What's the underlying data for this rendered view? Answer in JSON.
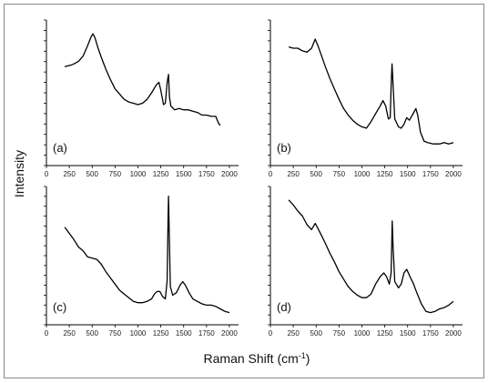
{
  "figure": {
    "xlabel": "Raman Shift (cm",
    "xlabel_sup": "-1",
    "xlabel_close": ")",
    "ylabel": "Intensity"
  },
  "chart_data": [
    {
      "type": "line",
      "panel": "(a)",
      "xlim": [
        0,
        2100
      ],
      "ylim": [
        0,
        100
      ],
      "xticks": [
        0,
        250,
        500,
        750,
        1000,
        1250,
        1500,
        1750,
        2000
      ],
      "series": [
        {
          "points": [
            [
              200,
              70
            ],
            [
              260,
              71
            ],
            [
              300,
              72
            ],
            [
              350,
              74
            ],
            [
              400,
              78
            ],
            [
              450,
              86
            ],
            [
              490,
              93
            ],
            [
              510,
              95
            ],
            [
              530,
              92
            ],
            [
              560,
              85
            ],
            [
              600,
              77
            ],
            [
              650,
              68
            ],
            [
              700,
              60
            ],
            [
              750,
              53
            ],
            [
              800,
              49
            ],
            [
              850,
              45
            ],
            [
              900,
              43
            ],
            [
              950,
              42
            ],
            [
              1000,
              41
            ],
            [
              1050,
              42
            ],
            [
              1100,
              45
            ],
            [
              1150,
              50
            ],
            [
              1200,
              56
            ],
            [
              1230,
              58
            ],
            [
              1250,
              52
            ],
            [
              1280,
              41
            ],
            [
              1300,
              42
            ],
            [
              1320,
              58
            ],
            [
              1335,
              64
            ],
            [
              1345,
              47
            ],
            [
              1360,
              40
            ],
            [
              1400,
              37
            ],
            [
              1450,
              38
            ],
            [
              1500,
              37
            ],
            [
              1550,
              37
            ],
            [
              1600,
              36
            ],
            [
              1650,
              35
            ],
            [
              1700,
              33
            ],
            [
              1750,
              33
            ],
            [
              1800,
              32
            ],
            [
              1850,
              32
            ],
            [
              1880,
              27
            ],
            [
              1900,
              25
            ]
          ]
        }
      ]
    },
    {
      "type": "line",
      "panel": "(b)",
      "xlim": [
        0,
        2100
      ],
      "ylim": [
        0,
        100
      ],
      "xticks": [
        0,
        250,
        500,
        750,
        1000,
        1250,
        1500,
        1750,
        2000
      ],
      "series": [
        {
          "points": [
            [
              200,
              85
            ],
            [
              250,
              84
            ],
            [
              300,
              84
            ],
            [
              350,
              82
            ],
            [
              400,
              81
            ],
            [
              450,
              84
            ],
            [
              490,
              91
            ],
            [
              520,
              86
            ],
            [
              560,
              78
            ],
            [
              600,
              70
            ],
            [
              650,
              61
            ],
            [
              700,
              53
            ],
            [
              750,
              45
            ],
            [
              800,
              38
            ],
            [
              850,
              33
            ],
            [
              900,
              29
            ],
            [
              950,
              26
            ],
            [
              1000,
              24
            ],
            [
              1050,
              23
            ],
            [
              1100,
              28
            ],
            [
              1150,
              34
            ],
            [
              1200,
              40
            ],
            [
              1230,
              44
            ],
            [
              1260,
              40
            ],
            [
              1290,
              30
            ],
            [
              1310,
              31
            ],
            [
              1320,
              55
            ],
            [
              1330,
              72
            ],
            [
              1340,
              58
            ],
            [
              1360,
              30
            ],
            [
              1400,
              24
            ],
            [
              1430,
              23
            ],
            [
              1460,
              26
            ],
            [
              1490,
              31
            ],
            [
              1520,
              29
            ],
            [
              1560,
              34
            ],
            [
              1590,
              38
            ],
            [
              1610,
              33
            ],
            [
              1640,
              20
            ],
            [
              1680,
              13
            ],
            [
              1720,
              12
            ],
            [
              1780,
              11
            ],
            [
              1850,
              11
            ],
            [
              1900,
              12
            ],
            [
              1950,
              11
            ],
            [
              2000,
              12
            ]
          ]
        }
      ]
    },
    {
      "type": "line",
      "panel": "(c)",
      "xlim": [
        0,
        2100
      ],
      "ylim": [
        0,
        100
      ],
      "xticks": [
        0,
        250,
        500,
        750,
        1000,
        1250,
        1500,
        1750,
        2000
      ],
      "series": [
        {
          "points": [
            [
              200,
              73
            ],
            [
              250,
              68
            ],
            [
              300,
              63
            ],
            [
              350,
              57
            ],
            [
              400,
              54
            ],
            [
              450,
              49
            ],
            [
              500,
              48
            ],
            [
              550,
              47
            ],
            [
              600,
              43
            ],
            [
              650,
              37
            ],
            [
              700,
              32
            ],
            [
              750,
              27
            ],
            [
              800,
              22
            ],
            [
              850,
              19
            ],
            [
              900,
              16
            ],
            [
              950,
              13
            ],
            [
              1000,
              12
            ],
            [
              1050,
              12
            ],
            [
              1100,
              13
            ],
            [
              1150,
              15
            ],
            [
              1180,
              19
            ],
            [
              1210,
              21
            ],
            [
              1240,
              21
            ],
            [
              1270,
              17
            ],
            [
              1300,
              15
            ],
            [
              1320,
              30
            ],
            [
              1330,
              80
            ],
            [
              1335,
              98
            ],
            [
              1342,
              72
            ],
            [
              1355,
              25
            ],
            [
              1380,
              18
            ],
            [
              1420,
              20
            ],
            [
              1460,
              26
            ],
            [
              1490,
              29
            ],
            [
              1520,
              26
            ],
            [
              1560,
              20
            ],
            [
              1600,
              15
            ],
            [
              1650,
              13
            ],
            [
              1700,
              11
            ],
            [
              1750,
              10
            ],
            [
              1800,
              10
            ],
            [
              1850,
              9
            ],
            [
              1900,
              7
            ],
            [
              1950,
              5
            ],
            [
              2000,
              4
            ]
          ]
        }
      ]
    },
    {
      "type": "line",
      "panel": "(d)",
      "xlim": [
        0,
        2100
      ],
      "ylim": [
        0,
        100
      ],
      "xticks": [
        0,
        250,
        500,
        750,
        1000,
        1250,
        1500,
        1750,
        2000
      ],
      "series": [
        {
          "points": [
            [
              200,
              95
            ],
            [
              250,
              91
            ],
            [
              300,
              86
            ],
            [
              350,
              82
            ],
            [
              400,
              75
            ],
            [
              450,
              71
            ],
            [
              490,
              76
            ],
            [
              520,
              72
            ],
            [
              560,
              66
            ],
            [
              600,
              60
            ],
            [
              650,
              52
            ],
            [
              700,
              45
            ],
            [
              750,
              37
            ],
            [
              800,
              31
            ],
            [
              850,
              25
            ],
            [
              900,
              21
            ],
            [
              950,
              18
            ],
            [
              1000,
              16
            ],
            [
              1050,
              16
            ],
            [
              1100,
              19
            ],
            [
              1150,
              27
            ],
            [
              1200,
              33
            ],
            [
              1240,
              36
            ],
            [
              1270,
              33
            ],
            [
              1300,
              27
            ],
            [
              1320,
              36
            ],
            [
              1332,
              78
            ],
            [
              1342,
              56
            ],
            [
              1360,
              29
            ],
            [
              1400,
              24
            ],
            [
              1430,
              27
            ],
            [
              1460,
              36
            ],
            [
              1490,
              39
            ],
            [
              1520,
              34
            ],
            [
              1560,
              28
            ],
            [
              1600,
              20
            ],
            [
              1650,
              11
            ],
            [
              1700,
              5
            ],
            [
              1750,
              4
            ],
            [
              1800,
              5
            ],
            [
              1850,
              7
            ],
            [
              1900,
              8
            ],
            [
              1950,
              10
            ],
            [
              2000,
              13
            ]
          ]
        }
      ]
    }
  ]
}
